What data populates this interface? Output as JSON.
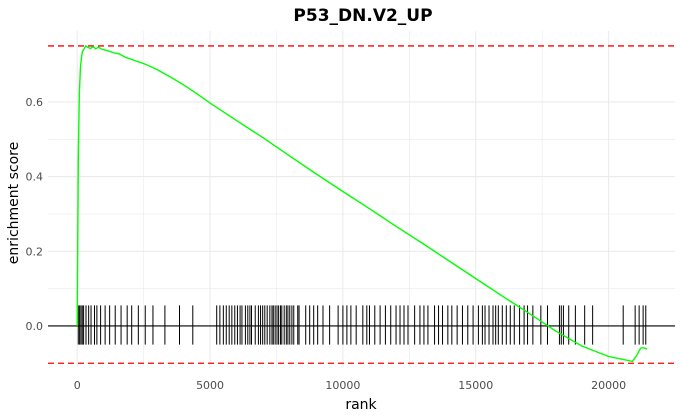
{
  "chart_data": {
    "type": "line",
    "title": "P53_DN.V2_UP",
    "xlabel": "rank",
    "ylabel": "enrichment score",
    "xlim": [
      -1100,
      22500
    ],
    "ylim": [
      -0.11,
      0.79
    ],
    "x_ticks": [
      0,
      5000,
      10000,
      15000,
      20000
    ],
    "y_ticks": [
      0.0,
      0.2,
      0.4,
      0.6
    ],
    "x_tick_labels": [
      "0",
      "5000",
      "10000",
      "15000",
      "20000"
    ],
    "y_tick_labels": [
      "0.0",
      "0.2",
      "0.4",
      "0.6"
    ],
    "grid": true,
    "colors": {
      "curve": "#00ff00",
      "threshold": "#ff0000",
      "hits": "#000000",
      "grid": "#ebebeb"
    },
    "thresholds": [
      0.75,
      -0.1
    ],
    "zero_line": 0,
    "hit_band": [
      -0.05,
      0.055
    ],
    "series": [
      {
        "x": [
          0,
          40,
          80,
          120,
          160,
          200,
          260,
          320,
          400,
          500,
          600,
          700,
          800,
          900,
          1000,
          1200,
          1400,
          1600,
          1800,
          2000,
          2200,
          2400,
          2600,
          3000,
          3500,
          4000,
          4500,
          5000,
          6000,
          7000,
          8000,
          9000,
          10000,
          11000,
          12000,
          13000,
          14000,
          15000,
          16000,
          17000,
          18000,
          19000,
          20000,
          20500,
          20900,
          21050,
          21200,
          21300,
          21450
        ],
        "y": [
          0.0,
          0.45,
          0.62,
          0.69,
          0.72,
          0.735,
          0.742,
          0.75,
          0.746,
          0.743,
          0.748,
          0.742,
          0.747,
          0.742,
          0.74,
          0.736,
          0.731,
          0.728,
          0.72,
          0.715,
          0.71,
          0.705,
          0.7,
          0.687,
          0.667,
          0.646,
          0.622,
          0.597,
          0.55,
          0.504,
          0.455,
          0.407,
          0.36,
          0.314,
          0.267,
          0.221,
          0.174,
          0.127,
          0.08,
          0.034,
          -0.013,
          -0.054,
          -0.082,
          -0.089,
          -0.095,
          -0.08,
          -0.06,
          -0.058,
          -0.062
        ]
      }
    ],
    "hits": [
      40,
      90,
      140,
      190,
      240,
      330,
      430,
      520,
      650,
      740,
      880,
      1050,
      1220,
      1430,
      1650,
      1880,
      2050,
      2300,
      2560,
      2850,
      3300,
      3850,
      4350,
      5250,
      5370,
      5500,
      5610,
      5720,
      5820,
      5930,
      6030,
      6130,
      6200,
      6330,
      6420,
      6500,
      6560,
      6700,
      6820,
      6900,
      6980,
      7060,
      7150,
      7250,
      7330,
      7380,
      7450,
      7520,
      7580,
      7650,
      7700,
      7790,
      7870,
      7930,
      8000,
      8080,
      8150,
      8300,
      8350,
      8600,
      8750,
      8900,
      9050,
      9250,
      9500,
      9820,
      10000,
      10150,
      10300,
      10500,
      10750,
      10900,
      11000,
      11200,
      11400,
      11600,
      11800,
      12000,
      12150,
      12300,
      12450,
      12700,
      12900,
      13050,
      13200,
      13450,
      13600,
      13750,
      13950,
      14100,
      14300,
      14500,
      14700,
      14900,
      15100,
      15250,
      15350,
      15500,
      15650,
      15750,
      15850,
      16000,
      16150,
      16300,
      16450,
      16650,
      16820,
      16950,
      17150,
      17450,
      17700,
      18150,
      18220,
      18300,
      18500,
      18750,
      19100,
      19400,
      20550,
      21000,
      21150,
      21300,
      21400
    ]
  }
}
